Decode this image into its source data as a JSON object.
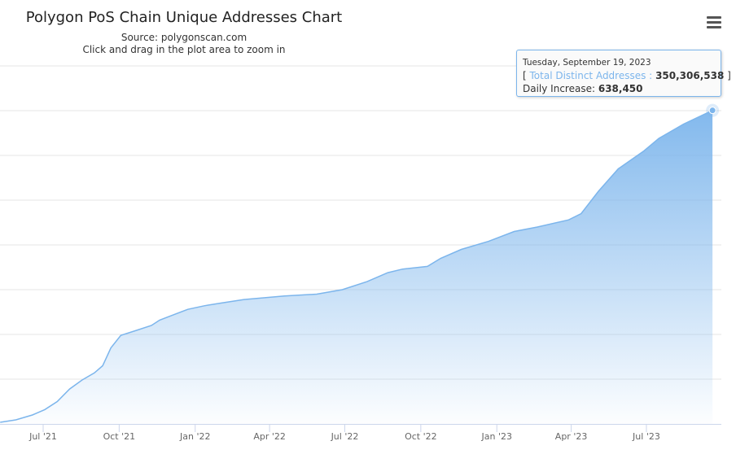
{
  "header": {
    "title": "Polygon PoS Chain Unique Addresses Chart",
    "source": "Source: polygonscan.com",
    "hint": "Click and drag in the plot area to zoom in"
  },
  "menu_icon": "hamburger-menu-icon",
  "tooltip": {
    "date": "Tuesday, September 19, 2023",
    "open_bracket": "[",
    "series_label": "Total Distinct Addresses :",
    "value": "350,306,538",
    "close_bracket": "]",
    "increase_label": "Daily Increase:",
    "increase_value": "638,450"
  },
  "chart_data": {
    "type": "area",
    "title": "Polygon PoS Chain Unique Addresses Chart",
    "series": [
      {
        "name": "Total Distinct Addresses",
        "color": "#7cb5ec",
        "unit": "millions",
        "points": [
          [
            "2021-05-10",
            1.8
          ],
          [
            "2021-05-29",
            4.5
          ],
          [
            "2021-06-18",
            10
          ],
          [
            "2021-07-03",
            16
          ],
          [
            "2021-07-18",
            25
          ],
          [
            "2021-08-02",
            39
          ],
          [
            "2021-08-17",
            49
          ],
          [
            "2021-09-01",
            57
          ],
          [
            "2021-09-11",
            65
          ],
          [
            "2021-09-21",
            85
          ],
          [
            "2021-10-03",
            99
          ],
          [
            "2021-10-20",
            104
          ],
          [
            "2021-11-09",
            110
          ],
          [
            "2021-11-19",
            116
          ],
          [
            "2021-12-03",
            121
          ],
          [
            "2021-12-23",
            128
          ],
          [
            "2022-01-12",
            132
          ],
          [
            "2022-02-01",
            135
          ],
          [
            "2022-03-01",
            139
          ],
          [
            "2022-04-19",
            143
          ],
          [
            "2022-05-28",
            145
          ],
          [
            "2022-06-28",
            150
          ],
          [
            "2022-07-28",
            159
          ],
          [
            "2022-08-22",
            169
          ],
          [
            "2022-09-09",
            173
          ],
          [
            "2022-10-09",
            176
          ],
          [
            "2022-10-25",
            185
          ],
          [
            "2022-11-19",
            195
          ],
          [
            "2022-12-22",
            204
          ],
          [
            "2023-01-22",
            215
          ],
          [
            "2023-02-19",
            220
          ],
          [
            "2023-03-29",
            228
          ],
          [
            "2023-04-13",
            235
          ],
          [
            "2023-05-04",
            260
          ],
          [
            "2023-05-28",
            285
          ],
          [
            "2023-06-28",
            305
          ],
          [
            "2023-07-16",
            319
          ],
          [
            "2023-08-15",
            335
          ],
          [
            "2023-09-19",
            350.306538
          ]
        ]
      }
    ],
    "x_ticks": [
      {
        "date": "2021-07-01",
        "label": "Jul '21"
      },
      {
        "date": "2021-10-01",
        "label": "Oct '21"
      },
      {
        "date": "2022-01-01",
        "label": "Jan '22"
      },
      {
        "date": "2022-04-01",
        "label": "Apr '22"
      },
      {
        "date": "2022-07-01",
        "label": "Jul '22"
      },
      {
        "date": "2022-10-01",
        "label": "Oct '22"
      },
      {
        "date": "2023-01-01",
        "label": "Jan '23"
      },
      {
        "date": "2023-04-01",
        "label": "Apr '23"
      },
      {
        "date": "2023-07-01",
        "label": "Jul '23"
      }
    ],
    "ylim": [
      0,
      400
    ],
    "y_grid_step": 50,
    "grid": true,
    "legend": "none"
  }
}
